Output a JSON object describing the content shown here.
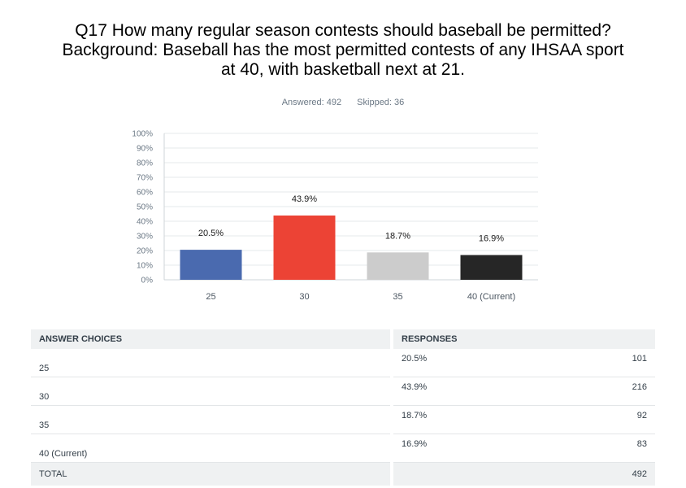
{
  "title": {
    "line1": "Q17 How many regular season contests should baseball be permitted?",
    "line2": "Background: Baseball has the most permitted contests of any IHSAA sport",
    "line3": "at 40, with basketball next at 21."
  },
  "meta": {
    "answered": "Answered: 492",
    "skipped": "Skipped: 36"
  },
  "chart_data": {
    "type": "bar",
    "categories": [
      "25",
      "30",
      "35",
      "40 (Current)"
    ],
    "values": [
      20.5,
      43.9,
      18.7,
      16.9
    ],
    "data_labels": [
      "20.5%",
      "43.9%",
      "18.7%",
      "16.9%"
    ],
    "colors": [
      "#4a6aaf",
      "#ec4335",
      "#cccccc",
      "#262626"
    ],
    "ylim": [
      0,
      100
    ],
    "yticks": [
      "0%",
      "10%",
      "20%",
      "30%",
      "40%",
      "50%",
      "60%",
      "70%",
      "80%",
      "90%",
      "100%"
    ],
    "grid": true,
    "title": "",
    "xlabel": "",
    "ylabel": ""
  },
  "table": {
    "headers": {
      "choices": "ANSWER CHOICES",
      "responses": "RESPONSES"
    },
    "rows": [
      {
        "choice": "25",
        "percent": "20.5%",
        "count": "101"
      },
      {
        "choice": "30",
        "percent": "43.9%",
        "count": "216"
      },
      {
        "choice": "35",
        "percent": "18.7%",
        "count": "92"
      },
      {
        "choice": "40 (Current)",
        "percent": "16.9%",
        "count": "83"
      }
    ],
    "total_label": "TOTAL",
    "total_count": "492"
  }
}
